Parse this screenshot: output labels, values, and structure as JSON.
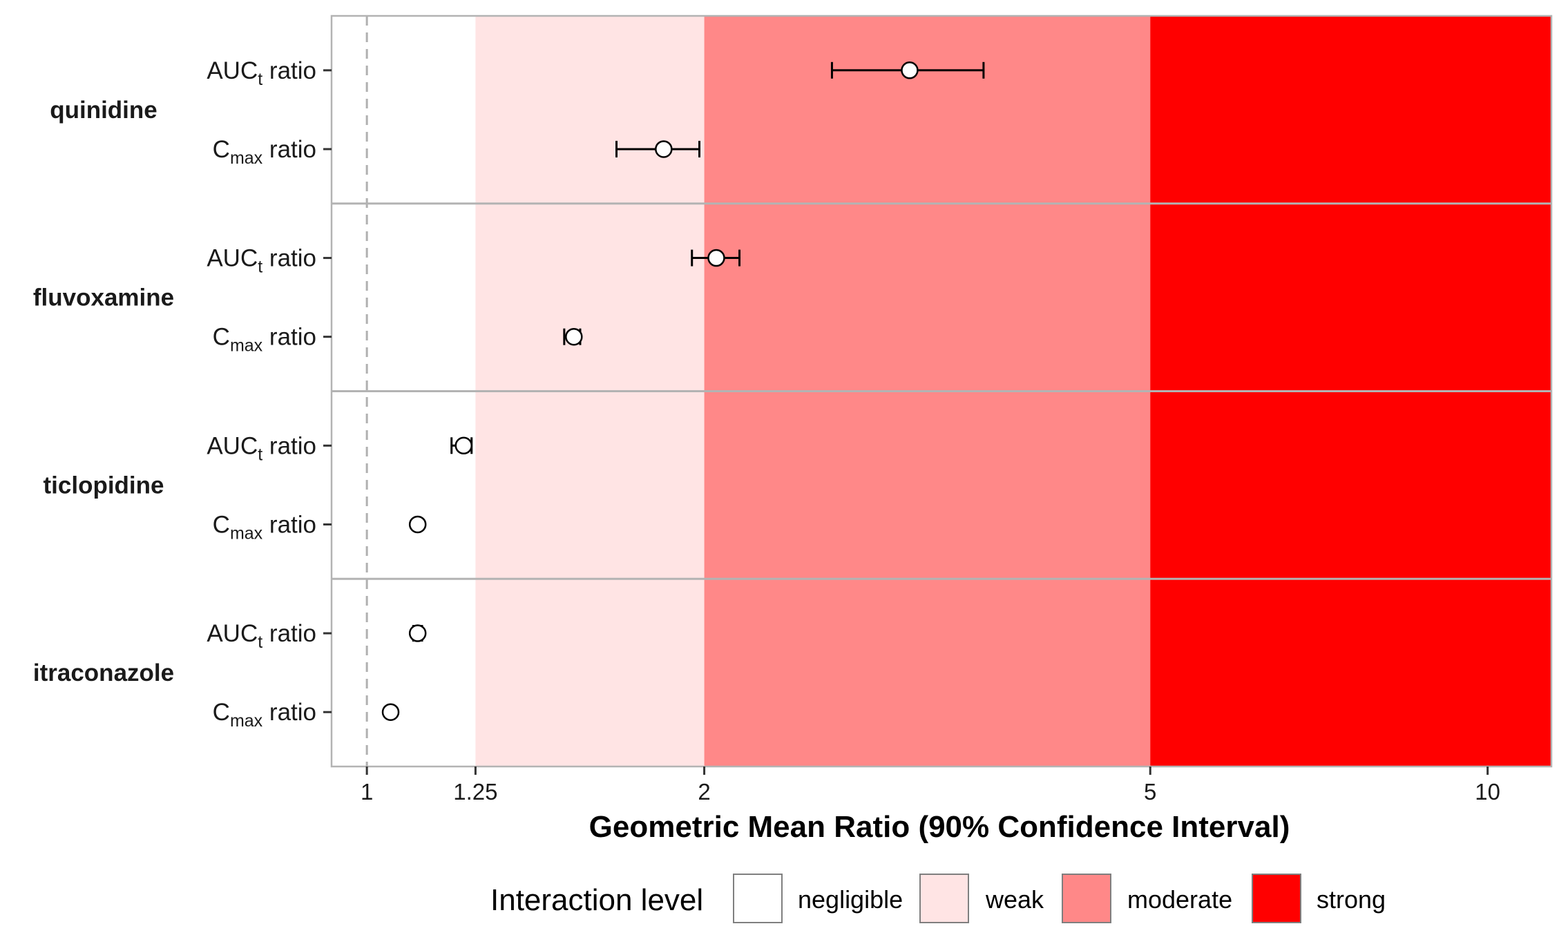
{
  "chart_data": {
    "type": "forest",
    "xlabel": "Geometric Mean Ratio (90% Confidence Interval)",
    "xscale": "log",
    "xlim": [
      0.93,
      11.4
    ],
    "xticks": [
      1,
      1.25,
      2,
      5,
      10
    ],
    "xtick_labels": [
      "1",
      "1.25",
      "2",
      "5",
      "10"
    ],
    "reference_line": 1,
    "zones": [
      {
        "name": "negligible",
        "from": 0.93,
        "to": 1.25,
        "color": "#ffffff"
      },
      {
        "name": "weak",
        "from": 1.25,
        "to": 2,
        "color": "#ffe4e4"
      },
      {
        "name": "moderate",
        "from": 2,
        "to": 5,
        "color": "#ff8888"
      },
      {
        "name": "strong",
        "from": 5,
        "to": 11.4,
        "color": "#ff0000"
      }
    ],
    "legend": {
      "title": "Interaction level",
      "placement": "bottom",
      "items": [
        {
          "label": "negligible",
          "color": "#ffffff"
        },
        {
          "label": "weak",
          "color": "#ffe4e4"
        },
        {
          "label": "moderate",
          "color": "#ff8888"
        },
        {
          "label": "strong",
          "color": "#ff0000"
        }
      ]
    },
    "groups": [
      {
        "name": "quinidine",
        "rows": [
          {
            "main": "AUC",
            "sub": "t",
            "suffix": " ratio",
            "value": 3.05,
            "lower": 2.6,
            "upper": 3.55
          },
          {
            "main": "C",
            "sub": "max",
            "suffix": " ratio",
            "value": 1.84,
            "lower": 1.67,
            "upper": 1.98
          }
        ]
      },
      {
        "name": "fluvoxamine",
        "rows": [
          {
            "main": "AUC",
            "sub": "t",
            "suffix": " ratio",
            "value": 2.05,
            "lower": 1.95,
            "upper": 2.15
          },
          {
            "main": "C",
            "sub": "max",
            "suffix": " ratio",
            "value": 1.53,
            "lower": 1.5,
            "upper": 1.55
          }
        ]
      },
      {
        "name": "ticlopidine",
        "rows": [
          {
            "main": "AUC",
            "sub": "t",
            "suffix": " ratio",
            "value": 1.22,
            "lower": 1.19,
            "upper": 1.24
          },
          {
            "main": "C",
            "sub": "max",
            "suffix": " ratio",
            "value": 1.11,
            "lower": 1.11,
            "upper": 1.11
          }
        ]
      },
      {
        "name": "itraconazole",
        "rows": [
          {
            "main": "AUC",
            "sub": "t",
            "suffix": " ratio",
            "value": 1.11,
            "lower": 1.1,
            "upper": 1.12
          },
          {
            "main": "C",
            "sub": "max",
            "suffix": " ratio",
            "value": 1.05,
            "lower": 1.05,
            "upper": 1.05
          }
        ]
      }
    ]
  }
}
